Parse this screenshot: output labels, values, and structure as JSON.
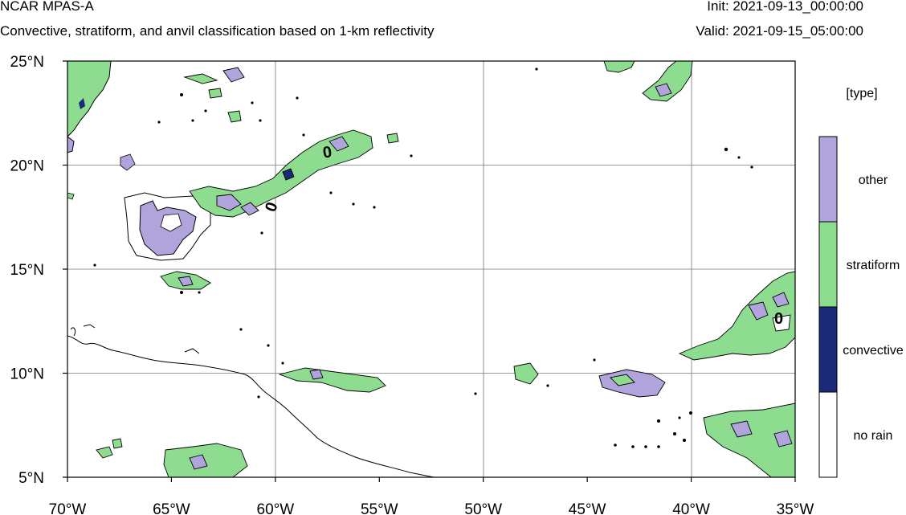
{
  "header": {
    "title": "NCAR MPAS-A",
    "subtitle": "Convective, stratiform, and anvil classification based on 1-km reflectivity",
    "init": "Init: 2021-09-13_00:00:00",
    "valid": "Valid: 2021-09-15_05:00:00"
  },
  "map": {
    "lon_range": [
      -70,
      -35
    ],
    "lat_range": [
      5,
      25
    ],
    "lon_ticks": [
      "70°W",
      "65°W",
      "60°W",
      "55°W",
      "50°W",
      "45°W",
      "40°W",
      "35°W"
    ],
    "lat_ticks": [
      "25°N",
      "20°N",
      "15°N",
      "10°N",
      "5°N"
    ],
    "grid": true
  },
  "legend": {
    "title": "[type]",
    "entries": [
      {
        "label": "other",
        "color": "#b1a4dd"
      },
      {
        "label": "stratiform",
        "color": "#8edc90"
      },
      {
        "label": "convective",
        "color": "#1a2a78"
      },
      {
        "label": "no rain",
        "color": "#ffffff"
      }
    ]
  },
  "contour_labels": [
    "0",
    "0",
    "0"
  ],
  "colors": {
    "other": "#b1a4dd",
    "stratiform": "#8edc90",
    "convective": "#1a2a78",
    "no_rain": "#ffffff",
    "frame": "#000000",
    "grid": "#777777"
  }
}
